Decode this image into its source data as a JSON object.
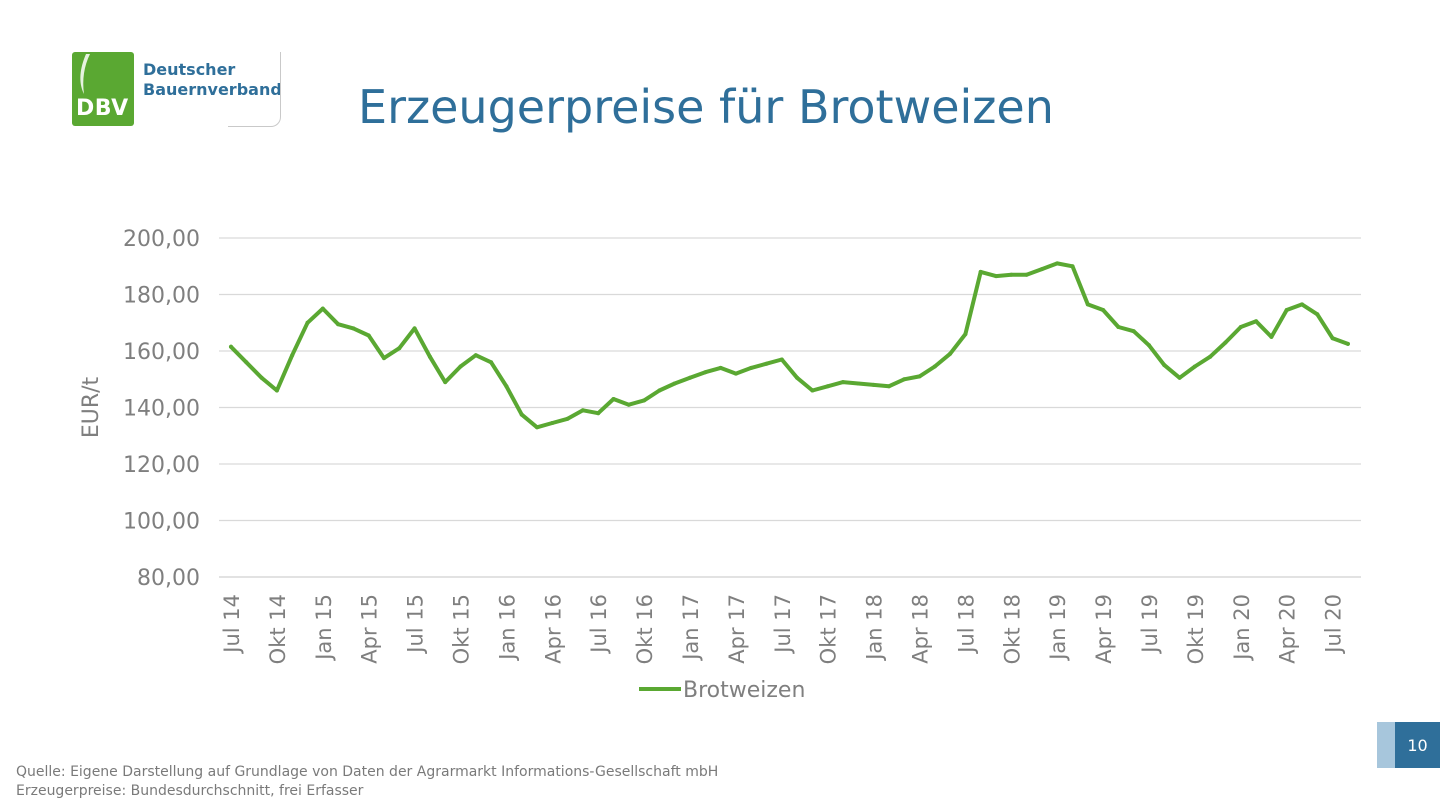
{
  "logo": {
    "abbr": "DBV",
    "name_line1": "Deutscher",
    "name_line2": "Bauernverband"
  },
  "title": "Erzeugerpreise für Brotweizen",
  "footer": {
    "source_line1": "Quelle: Eigene Darstellung auf Grundlage von Daten der Agrarmarkt Informations-Gesellschaft mbH",
    "source_line2": "Erzeugerpreise: Bundesdurchschnitt, frei Erfasser",
    "page_number": "10"
  },
  "colors": {
    "series": "#5aa832",
    "title": "#2f6f9a",
    "axis_text": "#7f7f7f",
    "grid": "#d9d9d9",
    "accent": "#2f6f9a"
  },
  "chart_data": {
    "type": "line",
    "ylabel": "EUR/t",
    "ylim": [
      80,
      200
    ],
    "yticks": [
      "80,00",
      "100,00",
      "120,00",
      "140,00",
      "160,00",
      "180,00",
      "200,00"
    ],
    "grid": true,
    "legend_position": "bottom",
    "x": [
      "Jul 14",
      "Aug 14",
      "Sep 14",
      "Okt 14",
      "Nov 14",
      "Dez 14",
      "Jan 15",
      "Feb 15",
      "Mrz 15",
      "Apr 15",
      "Mai 15",
      "Jun 15",
      "Jul 15",
      "Aug 15",
      "Sep 15",
      "Okt 15",
      "Nov 15",
      "Dez 15",
      "Jan 16",
      "Feb 16",
      "Mrz 16",
      "Apr 16",
      "Mai 16",
      "Jun 16",
      "Jul 16",
      "Aug 16",
      "Sep 16",
      "Okt 16",
      "Nov 16",
      "Dez 16",
      "Jan 17",
      "Feb 17",
      "Mrz 17",
      "Apr 17",
      "Mai 17",
      "Jun 17",
      "Jul 17",
      "Aug 17",
      "Sep 17",
      "Okt 17",
      "Nov 17",
      "Dez 17",
      "Jan 18",
      "Feb 18",
      "Mrz 18",
      "Apr 18",
      "Mai 18",
      "Jun 18",
      "Jul 18",
      "Aug 18",
      "Sep 18",
      "Okt 18",
      "Nov 18",
      "Dez 18",
      "Jan 19",
      "Feb 19",
      "Mrz 19",
      "Apr 19",
      "Mai 19",
      "Jun 19",
      "Jul 19",
      "Aug 19",
      "Sep 19",
      "Okt 19",
      "Nov 19",
      "Dez 19",
      "Jan 20",
      "Feb 20",
      "Mrz 20",
      "Apr 20",
      "Mai 20",
      "Jun 20",
      "Jul 20",
      "Aug 20"
    ],
    "x_tick_labels": [
      "Jul 14",
      "Okt 14",
      "Jan 15",
      "Apr 15",
      "Jul 15",
      "Okt 15",
      "Jan 16",
      "Apr 16",
      "Jul 16",
      "Okt 16",
      "Jan 17",
      "Apr 17",
      "Jul 17",
      "Okt 17",
      "Jan 18",
      "Apr 18",
      "Jul 18",
      "Okt 18",
      "Jan 19",
      "Apr 19",
      "Jul 19",
      "Okt 19",
      "Jan 20",
      "Apr 20",
      "Jul 20"
    ],
    "series": [
      {
        "name": "Brotweizen",
        "values": [
          161.5,
          156,
          150.5,
          146,
          158.5,
          170,
          175,
          169.5,
          168,
          165.5,
          157.5,
          161,
          168,
          158,
          149,
          154.5,
          158.5,
          156,
          147.5,
          137.5,
          133,
          134.5,
          136,
          139,
          138,
          143,
          141,
          142.5,
          146,
          148.5,
          150.5,
          152.5,
          154,
          152,
          154,
          155.5,
          157,
          150.5,
          146,
          147.5,
          149,
          148.5,
          148,
          147.5,
          150,
          151,
          154.5,
          159,
          166,
          188,
          186.5,
          187,
          187,
          189,
          191,
          190,
          176.5,
          174.5,
          168.5,
          167,
          162,
          155,
          150.5,
          154.5,
          158,
          163,
          168.5,
          170.5,
          165,
          174.5,
          176.5,
          173,
          164.5,
          162.5
        ]
      }
    ]
  }
}
